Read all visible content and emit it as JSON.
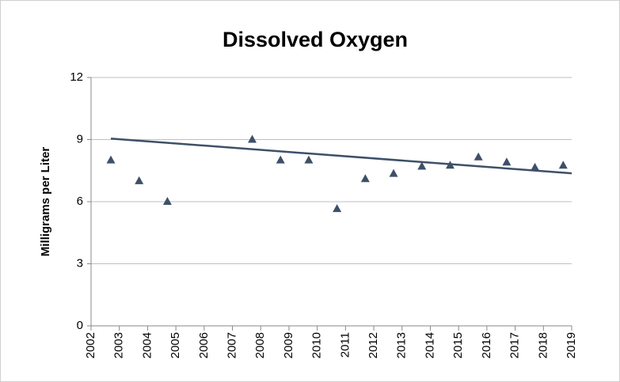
{
  "chart_data": {
    "type": "scatter",
    "title": "Dissolved Oxygen",
    "y_label": "Milligrams per Liter",
    "series": [
      {
        "name": "Dissolved Oxygen",
        "color": "#3e5068",
        "x": [
          2002.7,
          2003.7,
          2004.7,
          2007.7,
          2008.7,
          2009.7,
          2010.7,
          2011.7,
          2012.7,
          2013.7,
          2014.7,
          2015.7,
          2016.7,
          2017.7,
          2018.7
        ],
        "values": [
          8.0,
          7.0,
          6.0,
          9.0,
          8.0,
          8.0,
          5.65,
          7.1,
          7.35,
          7.7,
          7.75,
          8.15,
          7.9,
          7.65,
          7.75
        ]
      }
    ],
    "trendline": {
      "color": "#3e5068",
      "x": [
        2002.7,
        2019
      ],
      "values": [
        9.05,
        7.37
      ]
    },
    "xlim": [
      2002,
      2019
    ],
    "xticks": [
      2002,
      2003,
      2004,
      2005,
      2006,
      2007,
      2008,
      2009,
      2010,
      2011,
      2012,
      2013,
      2014,
      2015,
      2016,
      2017,
      2018,
      2019
    ],
    "ylim": [
      0,
      12
    ],
    "yticks": [
      0,
      3,
      6,
      9,
      12
    ],
    "grid": true
  }
}
